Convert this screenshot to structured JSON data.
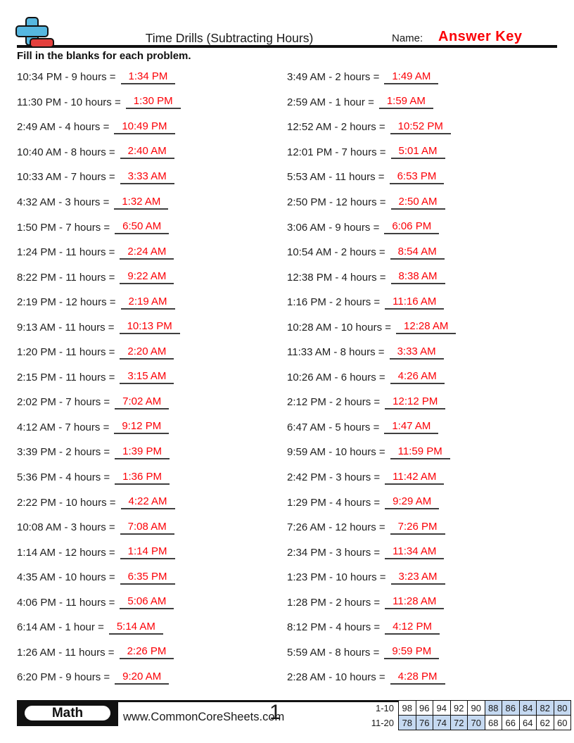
{
  "header": {
    "title": "Time Drills (Subtracting Hours)",
    "name_label": "Name:",
    "name_value": "Answer Key",
    "instructions": "Fill in the blanks for each problem."
  },
  "icons": {
    "logo": "plus-minus-math-logo"
  },
  "colors": {
    "answer_red": "#fb0006",
    "score_highlight_blue": "#c5d9f1",
    "logo_blue": "#56b7e0",
    "logo_red": "#e4403d",
    "rule_black": "#111111"
  },
  "problems": {
    "left": [
      {
        "question": "10:34 PM - 9 hours =",
        "answer": "1:34 PM"
      },
      {
        "question": "11:30 PM - 10 hours =",
        "answer": "1:30 PM"
      },
      {
        "question": "2:49 AM - 4 hours =",
        "answer": "10:49 PM"
      },
      {
        "question": "10:40 AM - 8 hours =",
        "answer": "2:40 AM"
      },
      {
        "question": "10:33 AM - 7 hours =",
        "answer": "3:33 AM"
      },
      {
        "question": "4:32 AM - 3 hours =",
        "answer": "1:32 AM"
      },
      {
        "question": "1:50 PM - 7 hours =",
        "answer": "6:50 AM"
      },
      {
        "question": "1:24 PM - 11 hours =",
        "answer": "2:24 AM"
      },
      {
        "question": "8:22 PM - 11 hours =",
        "answer": "9:22 AM"
      },
      {
        "question": "2:19 PM - 12 hours =",
        "answer": "2:19 AM"
      },
      {
        "question": "9:13 AM - 11 hours =",
        "answer": "10:13 PM"
      },
      {
        "question": "1:20 PM - 11 hours =",
        "answer": "2:20 AM"
      },
      {
        "question": "2:15 PM - 11 hours =",
        "answer": "3:15 AM"
      },
      {
        "question": "2:02 PM - 7 hours =",
        "answer": "7:02 AM"
      },
      {
        "question": "4:12 AM - 7 hours =",
        "answer": "9:12 PM"
      },
      {
        "question": "3:39 PM - 2 hours =",
        "answer": "1:39 PM"
      },
      {
        "question": "5:36 PM - 4 hours =",
        "answer": "1:36 PM"
      },
      {
        "question": "2:22 PM - 10 hours =",
        "answer": "4:22 AM"
      },
      {
        "question": "10:08 AM - 3 hours =",
        "answer": "7:08 AM"
      },
      {
        "question": "1:14 AM - 12 hours =",
        "answer": "1:14 PM"
      },
      {
        "question": "4:35 AM - 10 hours =",
        "answer": "6:35 PM"
      },
      {
        "question": "4:06 PM - 11 hours =",
        "answer": "5:06 AM"
      },
      {
        "question": "6:14 AM - 1 hour =",
        "answer": "5:14 AM"
      },
      {
        "question": "1:26 AM - 11 hours =",
        "answer": "2:26 PM"
      },
      {
        "question": "6:20 PM - 9 hours =",
        "answer": "9:20 AM"
      }
    ],
    "right": [
      {
        "question": "3:49 AM - 2 hours =",
        "answer": "1:49 AM"
      },
      {
        "question": "2:59 AM - 1 hour =",
        "answer": "1:59 AM"
      },
      {
        "question": "12:52 AM - 2 hours =",
        "answer": "10:52 PM"
      },
      {
        "question": "12:01 PM - 7 hours =",
        "answer": "5:01 AM"
      },
      {
        "question": "5:53 AM - 11 hours =",
        "answer": "6:53 PM"
      },
      {
        "question": "2:50 PM - 12 hours =",
        "answer": "2:50 AM"
      },
      {
        "question": "3:06 AM - 9 hours =",
        "answer": "6:06 PM"
      },
      {
        "question": "10:54 AM - 2 hours =",
        "answer": "8:54 AM"
      },
      {
        "question": "12:38 PM - 4 hours =",
        "answer": "8:38 AM"
      },
      {
        "question": "1:16 PM - 2 hours =",
        "answer": "11:16 AM"
      },
      {
        "question": "10:28 AM - 10 hours =",
        "answer": "12:28 AM"
      },
      {
        "question": "11:33 AM - 8 hours =",
        "answer": "3:33 AM"
      },
      {
        "question": "10:26 AM - 6 hours =",
        "answer": "4:26 AM"
      },
      {
        "question": "2:12 PM - 2 hours =",
        "answer": "12:12 PM"
      },
      {
        "question": "6:47 AM - 5 hours =",
        "answer": "1:47 AM"
      },
      {
        "question": "9:59 AM - 10 hours =",
        "answer": "11:59 PM"
      },
      {
        "question": "2:42 PM - 3 hours =",
        "answer": "11:42 AM"
      },
      {
        "question": "1:29 PM - 4 hours =",
        "answer": "9:29 AM"
      },
      {
        "question": "7:26 AM - 12 hours =",
        "answer": "7:26 PM"
      },
      {
        "question": "2:34 PM - 3 hours =",
        "answer": "11:34 AM"
      },
      {
        "question": "1:23 PM - 10 hours =",
        "answer": "3:23 AM"
      },
      {
        "question": "1:28 PM - 2 hours =",
        "answer": "11:28 AM"
      },
      {
        "question": "8:12 PM - 4 hours =",
        "answer": "4:12 PM"
      },
      {
        "question": "5:59 AM - 8 hours =",
        "answer": "9:59 PM"
      },
      {
        "question": "2:28 AM - 10 hours =",
        "answer": "4:28 PM"
      }
    ]
  },
  "footer": {
    "subject": "Math",
    "website": "www.CommonCoreSheets.com",
    "page_number": "1",
    "score_table": {
      "rows": [
        {
          "label": "1-10",
          "values": [
            "98",
            "96",
            "94",
            "92",
            "90",
            "88",
            "86",
            "84",
            "82",
            "80"
          ],
          "highlighted": [
            false,
            false,
            false,
            false,
            false,
            true,
            true,
            true,
            true,
            true
          ]
        },
        {
          "label": "11-20",
          "values": [
            "78",
            "76",
            "74",
            "72",
            "70",
            "68",
            "66",
            "64",
            "62",
            "60"
          ],
          "highlighted": [
            true,
            true,
            true,
            true,
            true,
            false,
            false,
            false,
            false,
            false
          ]
        }
      ]
    }
  }
}
